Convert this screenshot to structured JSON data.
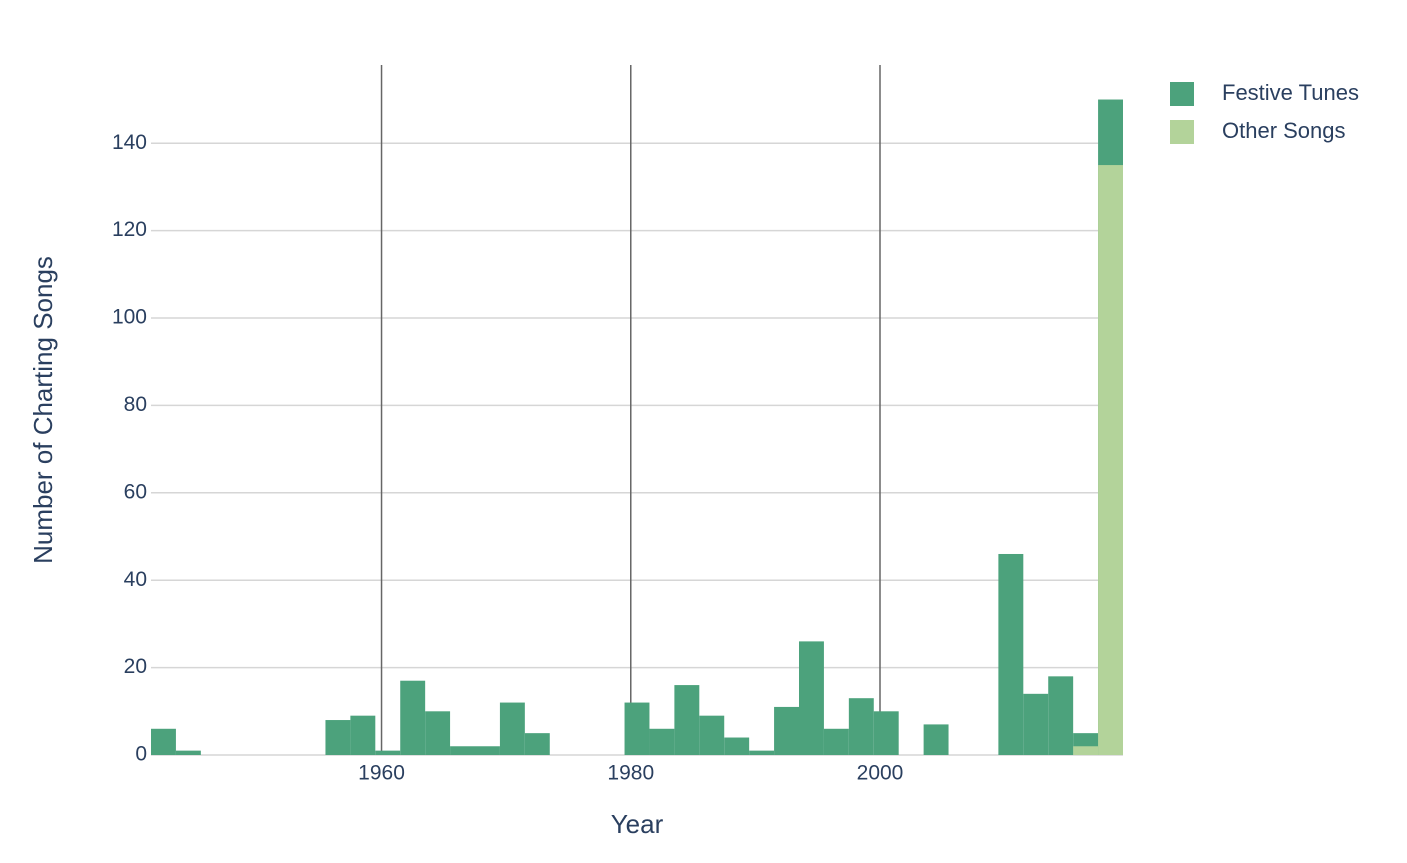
{
  "chart_data": {
    "type": "histogram",
    "xlabel": "Year",
    "ylabel": "Number of Charting Songs",
    "bins": [
      1941.5,
      1943.5,
      1945.5,
      1947.5,
      1949.5,
      1951.5,
      1953.5,
      1955.5,
      1957.5,
      1959.5,
      1961.5,
      1963.5,
      1965.5,
      1967.5,
      1969.5,
      1971.5,
      1973.5,
      1975.5,
      1977.5,
      1979.5,
      1981.5,
      1983.5,
      1985.5,
      1987.5,
      1989.5,
      1991.5,
      1993.5,
      1995.5,
      1997.5,
      1999.5,
      2001.5,
      2003.5,
      2005.5,
      2007.5,
      2009.5,
      2011.5,
      2013.5,
      2015.5,
      2017.5,
      2019.5
    ],
    "series": [
      {
        "name": "Festive Tunes",
        "color": "#4ca27c",
        "values": [
          6,
          1,
          0,
          0,
          0,
          0,
          0,
          8,
          9,
          1,
          17,
          10,
          2,
          2,
          12,
          5,
          0,
          0,
          0,
          12,
          6,
          16,
          9,
          4,
          1,
          11,
          26,
          6,
          13,
          10,
          0,
          7,
          0,
          0,
          46,
          14,
          18,
          5,
          150
        ]
      },
      {
        "name": "Other Songs",
        "color": "#b3d39a",
        "values": [
          0,
          0,
          0,
          0,
          0,
          0,
          0,
          0,
          0,
          0,
          0,
          0,
          0,
          0,
          0,
          0,
          0,
          0,
          0,
          0,
          0,
          0,
          0,
          0,
          0,
          0,
          0,
          0,
          0,
          0,
          0,
          0,
          0,
          0,
          0,
          0,
          0,
          2,
          135
        ]
      }
    ],
    "xlim": [
      1941.5,
      2019.5
    ],
    "ylim": [
      0,
      157.9
    ],
    "xticks": [
      1960,
      1980,
      2000
    ],
    "yticks": [
      0,
      20,
      40,
      60,
      80,
      100,
      120,
      140
    ],
    "xgrid": true,
    "ygrid": true,
    "legend": "top-right"
  }
}
